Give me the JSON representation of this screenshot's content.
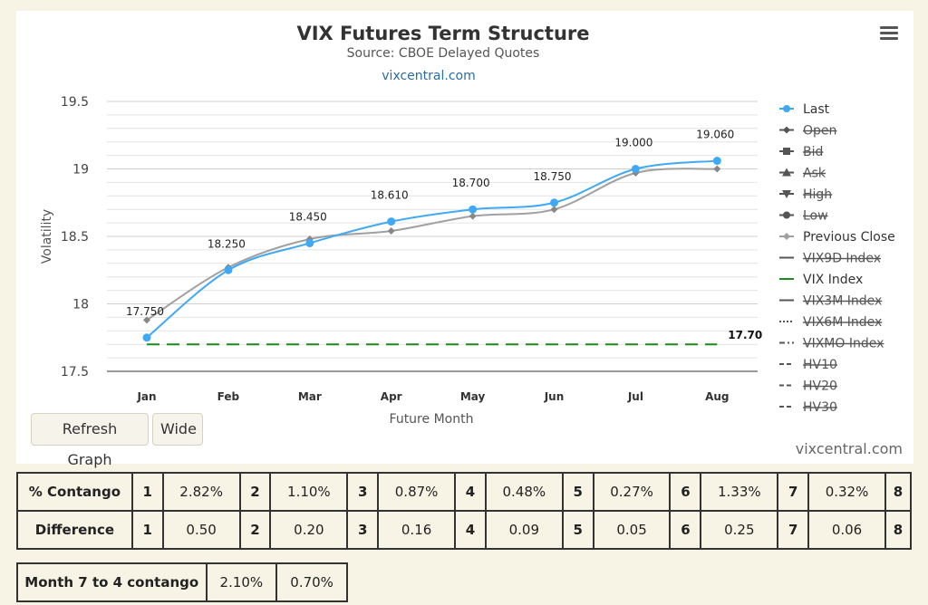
{
  "chart_data": {
    "type": "line",
    "title": "VIX Futures Term Structure",
    "subtitle": "Source: CBOE Delayed Quotes",
    "link": "vixcentral.com",
    "xlabel": "Future Month",
    "ylabel": "Volatility",
    "categories": [
      "Jan",
      "Feb",
      "Mar",
      "Apr",
      "May",
      "Jun",
      "Jul",
      "Aug"
    ],
    "ylim": [
      17.5,
      19.5
    ],
    "yticks": [
      17.5,
      18,
      18.5,
      19,
      19.5
    ],
    "ytick_labels": [
      "17.5",
      "18",
      "18.5",
      "19",
      "19.5"
    ],
    "grid": true,
    "legend_position": "right",
    "series": [
      {
        "name": "Last",
        "values": [
          17.75,
          18.25,
          18.45,
          18.61,
          18.7,
          18.75,
          19.0,
          19.06
        ],
        "labels": [
          "17.750",
          "18.250",
          "18.450",
          "18.610",
          "18.700",
          "18.750",
          "19.000",
          "19.060"
        ],
        "color": "#3fa9f5",
        "visible": true
      },
      {
        "name": "Previous Close",
        "values": [
          17.88,
          18.27,
          18.48,
          18.54,
          18.65,
          18.7,
          18.97,
          19.0
        ],
        "color": "#a0a0a0",
        "visible": true
      },
      {
        "name": "VIX Index",
        "value": 17.7,
        "value_label": "17.70",
        "color": "#1a8c1a",
        "visible": true
      }
    ],
    "legend": [
      {
        "name": "Last",
        "symbol": "circle",
        "color": "#3fa9f5",
        "enabled": true
      },
      {
        "name": "Open",
        "symbol": "diamond",
        "color": "#555555",
        "enabled": false
      },
      {
        "name": "Bid",
        "symbol": "square",
        "color": "#555555",
        "enabled": false
      },
      {
        "name": "Ask",
        "symbol": "triangle",
        "color": "#555555",
        "enabled": false
      },
      {
        "name": "High",
        "symbol": "triangle-down",
        "color": "#555555",
        "enabled": false
      },
      {
        "name": "Low",
        "symbol": "circle",
        "color": "#555555",
        "enabled": false
      },
      {
        "name": "Previous Close",
        "symbol": "diamond",
        "color": "#a0a0a0",
        "enabled": true
      },
      {
        "name": "VIX9D Index",
        "symbol": "line",
        "color": "#666666",
        "enabled": false
      },
      {
        "name": "VIX Index",
        "symbol": "line",
        "color": "#1a8c1a",
        "enabled": true
      },
      {
        "name": "VIX3M Index",
        "symbol": "line",
        "color": "#666666",
        "enabled": false
      },
      {
        "name": "VIX6M Index",
        "symbol": "dotted",
        "color": "#666666",
        "enabled": false
      },
      {
        "name": "VIXMO Index",
        "symbol": "dashdot",
        "color": "#666666",
        "enabled": false
      },
      {
        "name": "HV10",
        "symbol": "dashed",
        "color": "#666666",
        "enabled": false
      },
      {
        "name": "HV20",
        "symbol": "dashed",
        "color": "#666666",
        "enabled": false
      },
      {
        "name": "HV30",
        "symbol": "dashed",
        "color": "#666666",
        "enabled": false
      }
    ]
  },
  "buttons": {
    "refresh": "Refresh Graph",
    "wide": "Wide"
  },
  "watermark": "vixcentral.com",
  "contango_table": {
    "rows": [
      {
        "label": "% Contango",
        "cells": [
          [
            "1",
            "2.82%"
          ],
          [
            "2",
            "1.10%"
          ],
          [
            "3",
            "0.87%"
          ],
          [
            "4",
            "0.48%"
          ],
          [
            "5",
            "0.27%"
          ],
          [
            "6",
            "1.33%"
          ],
          [
            "7",
            "0.32%"
          ],
          [
            "8",
            ""
          ]
        ]
      },
      {
        "label": "Difference",
        "cells": [
          [
            "1",
            "0.50"
          ],
          [
            "2",
            "0.20"
          ],
          [
            "3",
            "0.16"
          ],
          [
            "4",
            "0.09"
          ],
          [
            "5",
            "0.05"
          ],
          [
            "6",
            "0.25"
          ],
          [
            "7",
            "0.06"
          ],
          [
            "8",
            ""
          ]
        ]
      }
    ]
  },
  "month_table": {
    "label": "Month 7 to 4 contango",
    "values": [
      "2.10%",
      "0.70%"
    ]
  }
}
